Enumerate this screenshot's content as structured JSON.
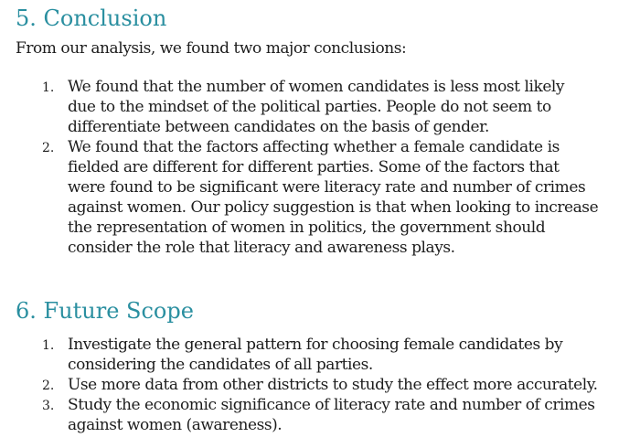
{
  "sections": [
    {
      "heading": "5. Conclusion",
      "intro": "From our analysis, we found two major conclusions:",
      "items": [
        {
          "number": "1.",
          "lines": [
            "We found that the number of women candidates is less most likely",
            "due to the mindset of the political parties. People do not seem to",
            "differentiate between candidates on the basis of gender."
          ]
        },
        {
          "number": "2.",
          "lines": [
            "We found that the factors affecting whether a female candidate is",
            "fielded are different for different parties. Some of the factors that",
            "were found to be significant were literacy rate and number of crimes",
            "against women. Our policy suggestion is that when looking to increase",
            "the representation of women in politics, the government should",
            "consider the role that literacy and awareness plays."
          ]
        }
      ]
    },
    {
      "heading": "6. Future Scope",
      "items": [
        {
          "number": "1.",
          "lines": [
            "Investigate the general pattern for choosing female candidates by",
            "considering the candidates of all parties."
          ]
        },
        {
          "number": "2.",
          "lines": [
            "Use more data from other districts to study the effect more accurately."
          ]
        },
        {
          "number": "3.",
          "lines": [
            "Study the economic significance of literacy rate and number of crimes",
            "against women (awareness)."
          ]
        }
      ]
    }
  ]
}
